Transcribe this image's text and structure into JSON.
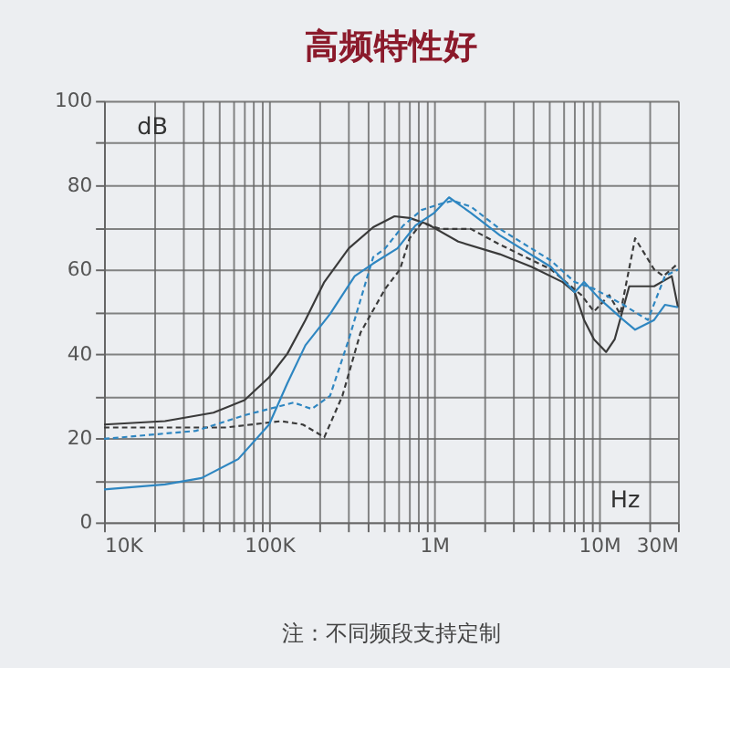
{
  "chart_data": {
    "type": "line",
    "title": "高频特性好",
    "xlabel": "Hz",
    "ylabel": "dB",
    "annotations": [
      "注：不同频段支持定制"
    ],
    "log": "x",
    "grid": true,
    "legend": false,
    "marker": "none",
    "xlim": [
      10000,
      30000000
    ],
    "ylim": [
      0,
      100
    ],
    "xticks": [
      {
        "value": 10000,
        "label": "10K"
      },
      {
        "value": 20000,
        "label": null
      },
      {
        "value": 30000,
        "label": null
      },
      {
        "value": 40000,
        "label": null
      },
      {
        "value": 50000,
        "label": null
      },
      {
        "value": 60000,
        "label": null
      },
      {
        "value": 70000,
        "label": null
      },
      {
        "value": 80000,
        "label": null
      },
      {
        "value": 90000,
        "label": null
      },
      {
        "value": 100000,
        "label": "100K"
      },
      {
        "value": 200000,
        "label": null
      },
      {
        "value": 300000,
        "label": null
      },
      {
        "value": 400000,
        "label": null
      },
      {
        "value": 500000,
        "label": null
      },
      {
        "value": 600000,
        "label": null
      },
      {
        "value": 700000,
        "label": null
      },
      {
        "value": 800000,
        "label": null
      },
      {
        "value": 900000,
        "label": null
      },
      {
        "value": 1000000,
        "label": "1M"
      },
      {
        "value": 2000000,
        "label": null
      },
      {
        "value": 3000000,
        "label": null
      },
      {
        "value": 4000000,
        "label": null
      },
      {
        "value": 5000000,
        "label": null
      },
      {
        "value": 6000000,
        "label": null
      },
      {
        "value": 7000000,
        "label": null
      },
      {
        "value": 8000000,
        "label": null
      },
      {
        "value": 9000000,
        "label": null
      },
      {
        "value": 10000000,
        "label": "10M"
      },
      {
        "value": 20000000,
        "label": null
      },
      {
        "value": 30000000,
        "label": "30M"
      }
    ],
    "yticks": [
      0,
      {
        "value": 10,
        "label": null
      },
      20,
      {
        "value": 30,
        "label": null
      },
      40,
      {
        "value": 50,
        "label": null
      },
      60,
      {
        "value": 70,
        "label": null
      },
      80,
      {
        "value": 90,
        "label": null
      },
      100
    ],
    "series": [
      {
        "color": "#3a3a3a",
        "line_style": "solid",
        "x": [
          10000,
          23400,
          46000,
          71000,
          100000,
          129000,
          166000,
          216000,
          304000,
          427000,
          575000,
          710000,
          915000,
          1400000,
          2500000,
          3900000,
          6000000,
          7100000,
          8100000,
          9300000,
          11000000,
          12400000,
          15200000,
          21500000,
          27500000,
          30000000
        ],
        "values": [
          23.2,
          24,
          26,
          29,
          34.4,
          40,
          48,
          57,
          65,
          70,
          72.6,
          72.2,
          70.7,
          66.6,
          63.6,
          60.6,
          57,
          54.6,
          48,
          43.4,
          40.4,
          43.4,
          56,
          56,
          58.4,
          51
        ]
      },
      {
        "color": "#3a3a3a",
        "line_style": "dashed",
        "x": [
          10000,
          55000,
          118000,
          160000,
          216000,
          278000,
          358000,
          505000,
          621000,
          710000,
          840000,
          1100000,
          1670000,
          2500000,
          5100000,
          7800000,
          9300000,
          11500000,
          13400000,
          16500000,
          21500000,
          24500000,
          30000000
        ],
        "values": [
          22.5,
          22.5,
          24,
          23.2,
          20.2,
          30,
          45,
          55.4,
          60,
          67.4,
          71,
          69.6,
          69.6,
          65.9,
          60,
          53.9,
          50,
          53.9,
          49.4,
          67.4,
          60,
          58.4,
          61.4
        ]
      },
      {
        "color": "#2e86c1",
        "line_style": "solid",
        "x": [
          10000,
          23400,
          39000,
          65000,
          100000,
          129000,
          166000,
          234000,
          330000,
          427000,
          600000,
          770000,
          1000000,
          1230000,
          1670000,
          2500000,
          5100000,
          7100000,
          8100000,
          10000000,
          14000000,
          16500000,
          21500000,
          25000000,
          30000000
        ],
        "values": [
          7.8,
          9,
          10.5,
          15,
          23.2,
          33,
          42,
          49.4,
          58.4,
          61.4,
          65,
          70.4,
          73.4,
          77.1,
          73.4,
          68.1,
          60.6,
          54.6,
          57,
          53.1,
          48,
          45.7,
          48,
          51.6,
          51
        ]
      },
      {
        "color": "#2e86c1",
        "line_style": "dashed",
        "x": [
          10000,
          36000,
          71000,
          141000,
          181000,
          234000,
          304000,
          427000,
          505000,
          650000,
          840000,
          1100000,
          1300000,
          1670000,
          2500000,
          5100000,
          7100000,
          9300000,
          14000000,
          19700000,
          25000000,
          30000000
        ],
        "values": [
          19.8,
          21.7,
          25.4,
          28.4,
          26.9,
          30,
          43.4,
          62.9,
          65,
          70.4,
          74.1,
          75.6,
          76.3,
          74.9,
          69.6,
          62.1,
          57,
          55.4,
          51.6,
          48,
          58.4,
          60
        ]
      }
    ]
  }
}
